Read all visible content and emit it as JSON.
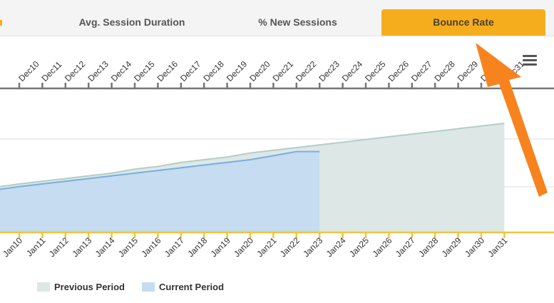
{
  "tabs": [
    {
      "label": "Avg. Session Duration",
      "active": false
    },
    {
      "label": "% New Sessions",
      "active": false
    },
    {
      "label": "Bounce Rate",
      "active": true
    }
  ],
  "colors": {
    "accent": "#f6ad1d",
    "previous_fill": "#dde8e6",
    "previous_line": "#b4cdc8",
    "current_fill": "#c5dcf1",
    "current_line": "#79aee0",
    "top_axis": "#777777",
    "bottom_axis": "#f0c53a",
    "arrow": "#f7831e"
  },
  "menu": {
    "icon": "hamburger-menu-icon"
  },
  "chart_data": {
    "type": "area",
    "top_axis_ticks": [
      "Dec10",
      "Dec11",
      "Dec12",
      "Dec13",
      "Dec14",
      "Dec15",
      "Dec16",
      "Dec17",
      "Dec18",
      "Dec19",
      "Dec20",
      "Dec21",
      "Dec22",
      "Dec23",
      "Dec24",
      "Dec25",
      "Dec26",
      "Dec27",
      "Dec28",
      "Dec29",
      "Dec30",
      "Dec31"
    ],
    "bottom_axis_ticks": [
      "Jan10",
      "Jan11",
      "Jan12",
      "Jan13",
      "Jan14",
      "Jan15",
      "Jan16",
      "Jan17",
      "Jan18",
      "Jan19",
      "Jan20",
      "Jan21",
      "Jan22",
      "Jan23",
      "Jan24",
      "Jan25",
      "Jan26",
      "Jan27",
      "Jan28",
      "Jan29",
      "Jan30",
      "Jan31"
    ],
    "grid": true,
    "legend_position": "bottom-left",
    "series": [
      {
        "name": "Previous Period",
        "x": [
          "Dec09",
          "Dec10",
          "Dec11",
          "Dec12",
          "Dec13",
          "Dec14",
          "Dec15",
          "Dec16",
          "Dec17",
          "Dec18",
          "Dec19",
          "Dec20",
          "Dec21",
          "Dec22",
          "Dec23",
          "Dec24",
          "Dec25",
          "Dec26",
          "Dec27",
          "Dec28",
          "Dec29",
          "Dec30",
          "Dec31"
        ],
        "values": [
          0.34,
          0.36,
          0.38,
          0.4,
          0.42,
          0.44,
          0.47,
          0.49,
          0.52,
          0.54,
          0.56,
          0.59,
          0.61,
          0.63,
          0.65,
          0.67,
          0.69,
          0.71,
          0.73,
          0.75,
          0.77,
          0.79,
          0.81
        ]
      },
      {
        "name": "Current Period",
        "x": [
          "Jan09",
          "Jan10",
          "Jan11",
          "Jan12",
          "Jan13",
          "Jan14",
          "Jan15",
          "Jan16",
          "Jan17",
          "Jan18",
          "Jan19",
          "Jan20",
          "Jan21",
          "Jan22",
          "Jan23"
        ],
        "values": [
          0.32,
          0.34,
          0.36,
          0.38,
          0.4,
          0.42,
          0.44,
          0.46,
          0.48,
          0.5,
          0.52,
          0.54,
          0.57,
          0.6,
          0.6
        ]
      }
    ]
  }
}
